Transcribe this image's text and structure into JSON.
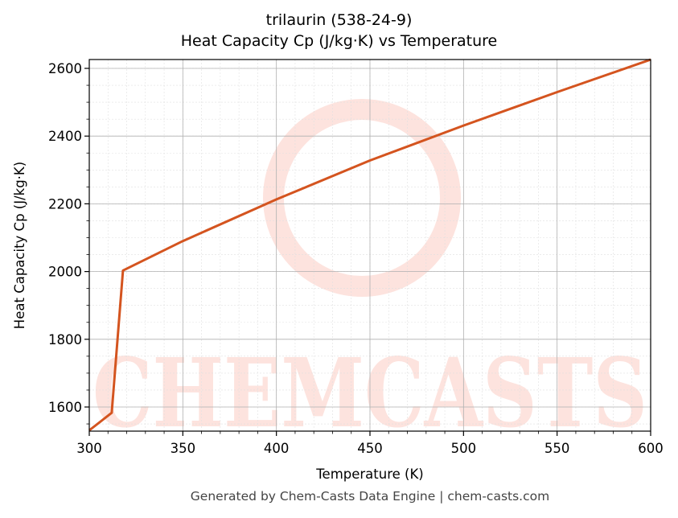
{
  "chart_data": {
    "type": "line",
    "title": "trilaurin (538-24-9)",
    "subtitle": "Heat Capacity Cp (J/kg·K) vs Temperature",
    "xlabel": "Temperature (K)",
    "ylabel": "Heat Capacity Cp (J/kg·K)",
    "xlim": [
      300,
      600
    ],
    "ylim": [
      1525,
      2627
    ],
    "xticks": [
      300,
      350,
      400,
      450,
      500,
      550,
      600
    ],
    "yticks": [
      1600,
      1800,
      2000,
      2200,
      2400,
      2600
    ],
    "grid": true,
    "legend": null,
    "series": [
      {
        "name": "Cp",
        "color": "#D4541F",
        "x": [
          300,
          312,
          318,
          350,
          400,
          450,
          500,
          550,
          600
        ],
        "y": [
          1531,
          1583,
          2003,
          2090,
          2213,
          2328,
          2431,
          2530,
          2626
        ]
      }
    ],
    "watermark": "CHEMCASTS"
  },
  "footer": "Generated by Chem-Casts Data Engine | chem-casts.com",
  "colors": {
    "line": "#D4541F",
    "watermark": "#FDE3DE",
    "grid_major": "#b0b0b0",
    "grid_minor": "#e0e0e0"
  }
}
